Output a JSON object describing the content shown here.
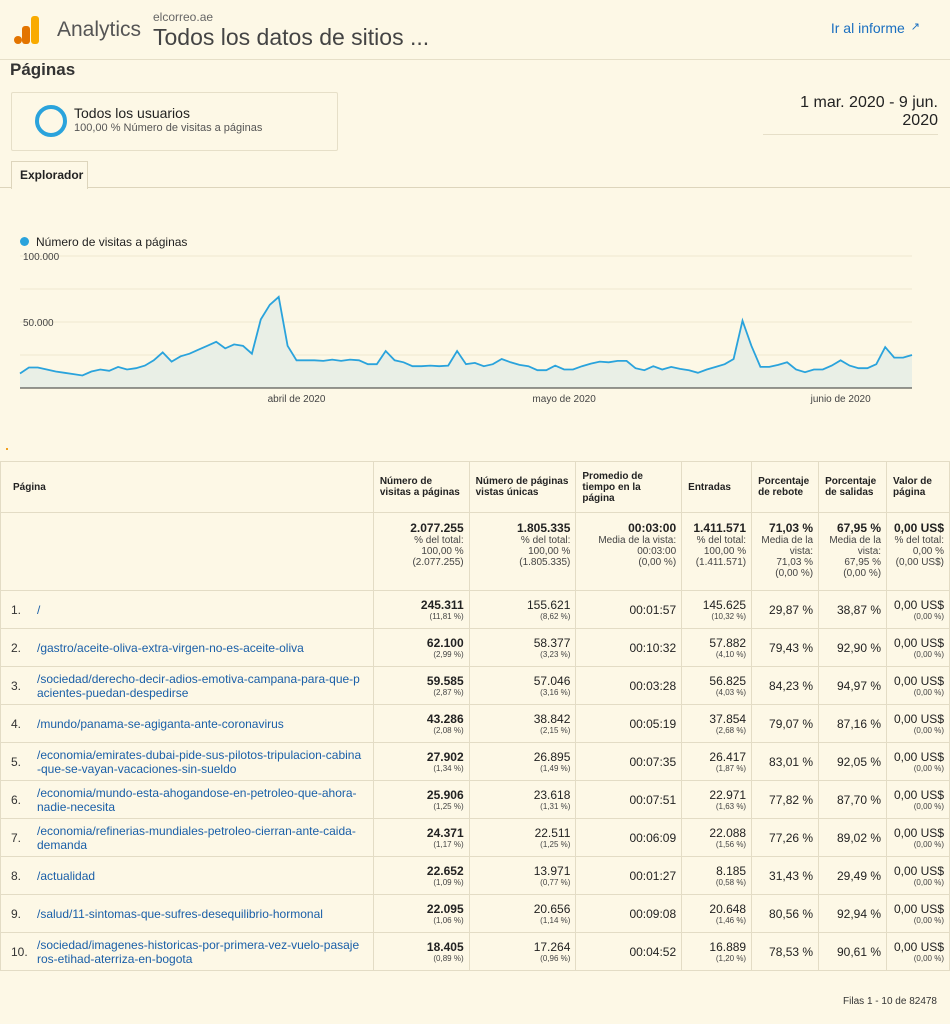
{
  "header": {
    "app_name": "Analytics",
    "site": "elcorreo.ae",
    "property": "Todos los datos de sitios ...",
    "report_link": "Ir al informe",
    "logo_colors": [
      "#f9ab00",
      "#e37400"
    ]
  },
  "page_title": "Páginas",
  "segment": {
    "name": "Todos los usuarios",
    "subtitle": "100,00 % Número de visitas a páginas",
    "color": "#2aa3dc"
  },
  "date_range": "1 mar. 2020 - 9 jun. 2020",
  "tabs": [
    {
      "label": "Explorador",
      "active": true
    }
  ],
  "chart_data": {
    "type": "area",
    "series": [
      {
        "name": "Número de visitas a páginas",
        "color": "#2aa3dc"
      }
    ],
    "x_range": [
      "2020-03-01",
      "2020-06-09"
    ],
    "x_tick_labels": [
      {
        "date": "2020-04-01",
        "label": "abril de 2020"
      },
      {
        "date": "2020-05-01",
        "label": "mayo de 2020"
      },
      {
        "date": "2020-06-01",
        "label": "junio de 2020"
      }
    ],
    "y_tick_labels": [
      {
        "value": 100000,
        "label": "100.000"
      },
      {
        "value": 50000,
        "label": "50.000"
      }
    ],
    "ylim": [
      0,
      100000
    ],
    "grid": true,
    "legend": "top-left",
    "values": [
      11000,
      15500,
      15500,
      14000,
      12500,
      11500,
      10500,
      9500,
      12500,
      14000,
      13000,
      16000,
      14000,
      15000,
      17000,
      21000,
      27000,
      20000,
      24000,
      26000,
      29000,
      32000,
      35000,
      30000,
      33000,
      32000,
      26000,
      52000,
      63000,
      69000,
      32000,
      21000,
      21000,
      21000,
      20500,
      21500,
      20500,
      21500,
      21000,
      18000,
      18000,
      28000,
      21000,
      19500,
      16500,
      16500,
      17000,
      16500,
      17000,
      28000,
      18000,
      19000,
      16500,
      18000,
      22000,
      19500,
      17500,
      16500,
      13500,
      13500,
      17000,
      14000,
      14000,
      16500,
      18500,
      20000,
      19500,
      20500,
      20500,
      15000,
      13500,
      16500,
      14000,
      16000,
      14500,
      13500,
      11500,
      14000,
      16000,
      18000,
      22000,
      51000,
      32000,
      16000,
      16000,
      17500,
      19500,
      14000,
      12000,
      14000,
      14000,
      17000,
      21000,
      17000,
      15000,
      15000,
      18000,
      31000,
      23000,
      23000,
      25000
    ]
  },
  "table": {
    "columns": [
      "Página",
      "Número de visitas a páginas",
      "Número de páginas vistas únicas",
      "Promedio de tiempo en la página",
      "Entradas",
      "Porcentaje de rebote",
      "Porcentaje de salidas",
      "Valor de página"
    ],
    "totals": [
      {
        "value": "2.077.255",
        "l1": "% del total:",
        "l2": "100,00 %",
        "l3": "(2.077.255)"
      },
      {
        "value": "1.805.335",
        "l1": "% del total:",
        "l2": "100,00 %",
        "l3": "(1.805.335)"
      },
      {
        "value": "00:03:00",
        "l1": "Media de la vista:",
        "l2": "00:03:00",
        "l3": "(0,00 %)"
      },
      {
        "value": "1.411.571",
        "l1": "% del total:",
        "l2": "100,00 %",
        "l3": "(1.411.571)"
      },
      {
        "value": "71,03 %",
        "l1": "Media de la",
        "l1b": "vista:",
        "l2": "71,03 %",
        "l3": "(0,00 %)"
      },
      {
        "value": "67,95 %",
        "l1": "Media de la",
        "l1b": "vista:",
        "l2": "67,95 %",
        "l3": "(0,00 %)"
      },
      {
        "value": "0,00 US$",
        "l1": "% del total:",
        "l2": "0,00 %",
        "l3": "(0,00 US$)"
      }
    ],
    "rows": [
      {
        "idx": "1.",
        "page": "/",
        "views": "245.311",
        "views_pct": "(11,81 %)",
        "unique": "155.621",
        "unique_pct": "(8,62 %)",
        "time": "00:01:57",
        "entries": "145.625",
        "entries_pct": "(10,32 %)",
        "bounce": "29,87 %",
        "exit": "38,87 %",
        "value": "0,00 US$",
        "value_pct": "(0,00 %)"
      },
      {
        "idx": "2.",
        "page": "/gastro/aceite-oliva-extra-virgen-no-es-aceite-oliva",
        "views": "62.100",
        "views_pct": "(2,99 %)",
        "unique": "58.377",
        "unique_pct": "(3,23 %)",
        "time": "00:10:32",
        "entries": "57.882",
        "entries_pct": "(4,10 %)",
        "bounce": "79,43 %",
        "exit": "92,90 %",
        "value": "0,00 US$",
        "value_pct": "(0,00 %)"
      },
      {
        "idx": "3.",
        "page": "/sociedad/derecho-decir-adios-emotiva-campana-para-que-pacientes-puedan-despedirse",
        "views": "59.585",
        "views_pct": "(2,87 %)",
        "unique": "57.046",
        "unique_pct": "(3,16 %)",
        "time": "00:03:28",
        "entries": "56.825",
        "entries_pct": "(4,03 %)",
        "bounce": "84,23 %",
        "exit": "94,97 %",
        "value": "0,00 US$",
        "value_pct": "(0,00 %)"
      },
      {
        "idx": "4.",
        "page": "/mundo/panama-se-agiganta-ante-coronavirus",
        "views": "43.286",
        "views_pct": "(2,08 %)",
        "unique": "38.842",
        "unique_pct": "(2,15 %)",
        "time": "00:05:19",
        "entries": "37.854",
        "entries_pct": "(2,68 %)",
        "bounce": "79,07 %",
        "exit": "87,16 %",
        "value": "0,00 US$",
        "value_pct": "(0,00 %)"
      },
      {
        "idx": "5.",
        "page": "/economia/emirates-dubai-pide-sus-pilotos-tripulacion-cabina-que-se-vayan-vacaciones-sin-sueldo",
        "views": "27.902",
        "views_pct": "(1,34 %)",
        "unique": "26.895",
        "unique_pct": "(1,49 %)",
        "time": "00:07:35",
        "entries": "26.417",
        "entries_pct": "(1,87 %)",
        "bounce": "83,01 %",
        "exit": "92,05 %",
        "value": "0,00 US$",
        "value_pct": "(0,00 %)"
      },
      {
        "idx": "6.",
        "page": "/economia/mundo-esta-ahogandose-en-petroleo-que-ahora-nadie-necesita",
        "views": "25.906",
        "views_pct": "(1,25 %)",
        "unique": "23.618",
        "unique_pct": "(1,31 %)",
        "time": "00:07:51",
        "entries": "22.971",
        "entries_pct": "(1,63 %)",
        "bounce": "77,82 %",
        "exit": "87,70 %",
        "value": "0,00 US$",
        "value_pct": "(0,00 %)"
      },
      {
        "idx": "7.",
        "page": "/economia/refinerias-mundiales-petroleo-cierran-ante-caida-demanda",
        "views": "24.371",
        "views_pct": "(1,17 %)",
        "unique": "22.511",
        "unique_pct": "(1,25 %)",
        "time": "00:06:09",
        "entries": "22.088",
        "entries_pct": "(1,56 %)",
        "bounce": "77,26 %",
        "exit": "89,02 %",
        "value": "0,00 US$",
        "value_pct": "(0,00 %)"
      },
      {
        "idx": "8.",
        "page": "/actualidad",
        "views": "22.652",
        "views_pct": "(1,09 %)",
        "unique": "13.971",
        "unique_pct": "(0,77 %)",
        "time": "00:01:27",
        "entries": "8.185",
        "entries_pct": "(0,58 %)",
        "bounce": "31,43 %",
        "exit": "29,49 %",
        "value": "0,00 US$",
        "value_pct": "(0,00 %)"
      },
      {
        "idx": "9.",
        "page": "/salud/11-sintomas-que-sufres-desequilibrio-hormonal",
        "views": "22.095",
        "views_pct": "(1,06 %)",
        "unique": "20.656",
        "unique_pct": "(1,14 %)",
        "time": "00:09:08",
        "entries": "20.648",
        "entries_pct": "(1,46 %)",
        "bounce": "80,56 %",
        "exit": "92,94 %",
        "value": "0,00 US$",
        "value_pct": "(0,00 %)"
      },
      {
        "idx": "10.",
        "page": "/sociedad/imagenes-historicas-por-primera-vez-vuelo-pasajeros-etihad-aterriza-en-bogota",
        "views": "18.405",
        "views_pct": "(0,89 %)",
        "unique": "17.264",
        "unique_pct": "(0,96 %)",
        "time": "00:04:52",
        "entries": "16.889",
        "entries_pct": "(1,20 %)",
        "bounce": "78,53 %",
        "exit": "90,61 %",
        "value": "0,00 US$",
        "value_pct": "(0,00 %)"
      }
    ],
    "footer": "Filas 1 - 10 de 82478"
  }
}
